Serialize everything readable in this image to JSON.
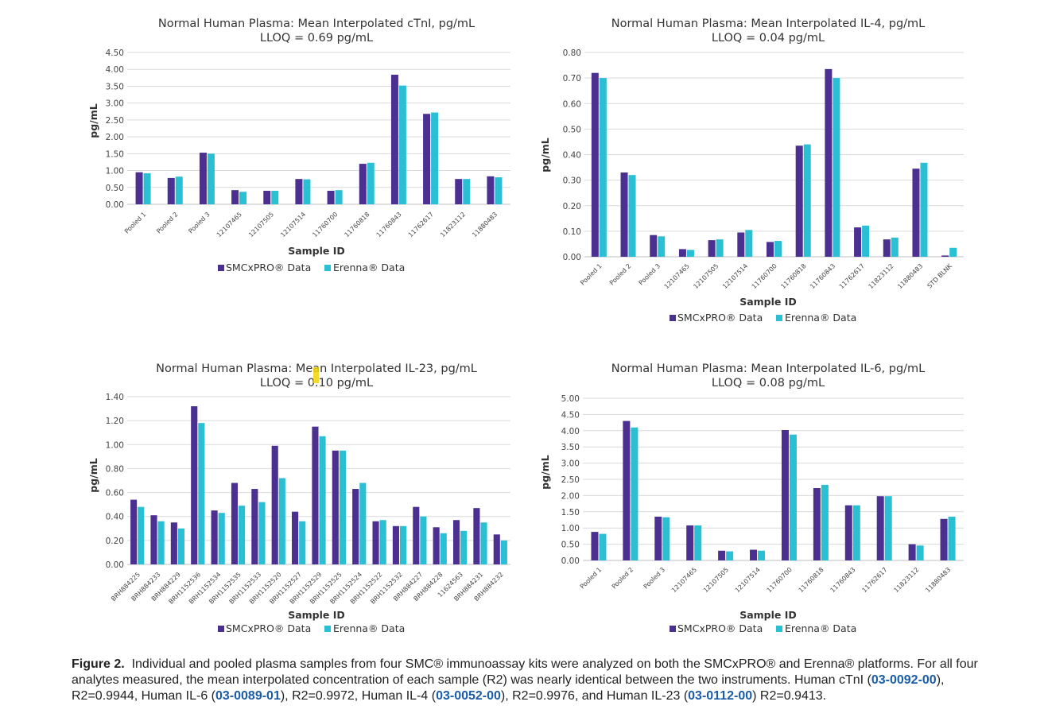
{
  "colors": {
    "smc": "#4b2f91",
    "erenna": "#2bbfd4",
    "grid": "#d9d9d9",
    "caption_link": "#1a5ca8"
  },
  "legend": {
    "smc_label": "SMCxPRO® Data",
    "erenna_label": "Erenna® Data"
  },
  "chart_data": [
    {
      "type": "bar",
      "title": "Normal Human Plasma: Mean Interpolated cTnI, pg/mL",
      "subtitle": "LLOQ = 0.69 pg/mL",
      "xlabel": "Sample ID",
      "ylabel": "pg/mL",
      "ylim": [
        0,
        4.5
      ],
      "ytick_step": 0.5,
      "ytick_decimals": 2,
      "grid": true,
      "legend_position": "bottom",
      "categories": [
        "Pooled 1",
        "Pooled 2",
        "Pooled 3",
        "12107465",
        "12107505",
        "12107514",
        "11760700",
        "11760818",
        "11760843",
        "11762617",
        "11823112",
        "11880483"
      ],
      "series": [
        {
          "name": "SMCxPRO® Data",
          "values": [
            0.95,
            0.78,
            1.53,
            0.42,
            0.4,
            0.75,
            0.4,
            1.2,
            3.84,
            2.68,
            0.75,
            0.83
          ]
        },
        {
          "name": "Erenna® Data",
          "values": [
            0.92,
            0.82,
            1.5,
            0.37,
            0.4,
            0.74,
            0.42,
            1.23,
            3.52,
            2.72,
            0.75,
            0.8
          ]
        }
      ]
    },
    {
      "type": "bar",
      "title": "Normal Human Plasma: Mean Interpolated IL-4, pg/mL",
      "subtitle": "LLOQ = 0.04 pg/mL",
      "xlabel": "Sample ID",
      "ylabel": "pg/mL",
      "ylim": [
        0,
        0.8
      ],
      "ytick_step": 0.1,
      "ytick_decimals": 2,
      "grid": true,
      "legend_position": "bottom",
      "categories": [
        "Pooled 1",
        "Pooled 2",
        "Pooled 3",
        "12107465",
        "12107505",
        "12107514",
        "11760700",
        "11760818",
        "11760843",
        "11762617",
        "11823112",
        "11880483",
        "STD BLNK"
      ],
      "series": [
        {
          "name": "SMCxPRO® Data",
          "values": [
            0.72,
            0.33,
            0.085,
            0.03,
            0.065,
            0.095,
            0.058,
            0.435,
            0.735,
            0.115,
            0.068,
            0.345,
            0.005
          ]
        },
        {
          "name": "Erenna® Data",
          "values": [
            0.7,
            0.32,
            0.08,
            0.027,
            0.068,
            0.105,
            0.062,
            0.44,
            0.7,
            0.122,
            0.075,
            0.368,
            0.035
          ]
        }
      ]
    },
    {
      "type": "bar",
      "title": "Normal Human Plasma: Mean Interpolated IL-23, pg/mL",
      "subtitle": "LLOQ = 0.10 pg/mL",
      "xlabel": "Sample ID",
      "ylabel": "pg/mL",
      "ylim": [
        0,
        1.4
      ],
      "ytick_step": 0.2,
      "ytick_decimals": 2,
      "grid": true,
      "legend_position": "bottom",
      "categories": [
        "BRH884225",
        "BRH884233",
        "BRH884229",
        "BRH1152536",
        "BRH1152534",
        "BRH1152535",
        "BRH1152533",
        "BRH1152520",
        "BRH1152527",
        "BRH1152529",
        "BRH1152525",
        "BRH1152524",
        "BRH1152522",
        "BRH1152532",
        "BRH884227",
        "BRH884228",
        "11624563",
        "BRH884231",
        "BRH884232"
      ],
      "series": [
        {
          "name": "SMCxPRO® Data",
          "values": [
            0.54,
            0.41,
            0.35,
            1.32,
            0.45,
            0.68,
            0.63,
            0.99,
            0.44,
            1.15,
            0.95,
            0.63,
            0.36,
            0.32,
            0.48,
            0.31,
            0.37,
            0.47,
            0.25
          ]
        },
        {
          "name": "Erenna® Data",
          "values": [
            0.48,
            0.36,
            0.3,
            1.18,
            0.43,
            0.49,
            0.52,
            0.72,
            0.36,
            1.07,
            0.95,
            0.68,
            0.37,
            0.32,
            0.4,
            0.26,
            0.28,
            0.35,
            0.2
          ]
        }
      ]
    },
    {
      "type": "bar",
      "title": "Normal Human Plasma: Mean Interpolated IL-6, pg/mL",
      "subtitle": "LLOQ = 0.08 pg/mL",
      "xlabel": "Sample ID",
      "ylabel": "pg/mL",
      "ylim": [
        0,
        5.0
      ],
      "ytick_step": 0.5,
      "ytick_decimals": 2,
      "grid": true,
      "legend_position": "bottom",
      "categories": [
        "Pooled 1",
        "Pooled 2",
        "Pooled 3",
        "12107465",
        "12107505",
        "12107514",
        "11760700",
        "11760818",
        "11760843",
        "11762617",
        "11823112",
        "11880483"
      ],
      "series": [
        {
          "name": "SMCxPRO® Data",
          "values": [
            0.88,
            4.3,
            1.35,
            1.08,
            0.3,
            0.33,
            4.02,
            2.23,
            1.7,
            1.98,
            0.5,
            1.28
          ]
        },
        {
          "name": "Erenna® Data",
          "values": [
            0.82,
            4.1,
            1.33,
            1.08,
            0.28,
            0.3,
            3.88,
            2.33,
            1.7,
            1.98,
            0.46,
            1.35
          ]
        }
      ]
    }
  ],
  "caption": {
    "label": "Figure 2.",
    "text_1": "Individual and pooled plasma samples from four SMC® immunoassay kits were analyzed on both the SMCxPRO® and Erenna® platforms. For all four analytes measured, the mean interpolated concentration of each sample (R2) was nearly identical between the two instruments. Human cTnI (",
    "ref_ctni": "03-0092-00",
    "text_2": "), R2=0.9944, Human IL-6 (",
    "ref_il6": "03-0089-01",
    "text_3": "), R2=0.9972, Human IL-4 (",
    "ref_il4": "03-0052-00",
    "text_4": "), R2=0.9976, and Human IL-23 (",
    "ref_il23": "03-0112-00",
    "text_5": ") R2=0.9413."
  }
}
